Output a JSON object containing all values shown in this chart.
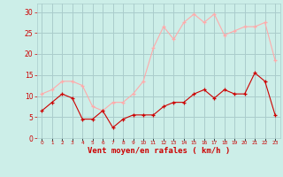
{
  "x": [
    0,
    1,
    2,
    3,
    4,
    5,
    6,
    7,
    8,
    9,
    10,
    11,
    12,
    13,
    14,
    15,
    16,
    17,
    18,
    19,
    20,
    21,
    22,
    23
  ],
  "vent_moyen": [
    6.5,
    8.5,
    10.5,
    9.5,
    4.5,
    4.5,
    6.5,
    2.5,
    4.5,
    5.5,
    5.5,
    5.5,
    7.5,
    8.5,
    8.5,
    10.5,
    11.5,
    9.5,
    11.5,
    10.5,
    10.5,
    15.5,
    13.5,
    5.5
  ],
  "rafales": [
    10.5,
    11.5,
    13.5,
    13.5,
    12.5,
    7.5,
    6.5,
    8.5,
    8.5,
    10.5,
    13.5,
    21.5,
    26.5,
    23.5,
    27.5,
    29.5,
    27.5,
    29.5,
    24.5,
    25.5,
    26.5,
    26.5,
    27.5,
    18.5
  ],
  "color_moyen": "#cc0000",
  "color_rafales": "#ffaaaa",
  "bg_color": "#cceee8",
  "grid_color": "#aacccc",
  "xlabel": "Vent moyen/en rafales ( km/h )",
  "yticks": [
    0,
    5,
    10,
    15,
    20,
    25,
    30
  ],
  "ylim": [
    0,
    32
  ],
  "xlim": [
    -0.5,
    23.5
  ]
}
